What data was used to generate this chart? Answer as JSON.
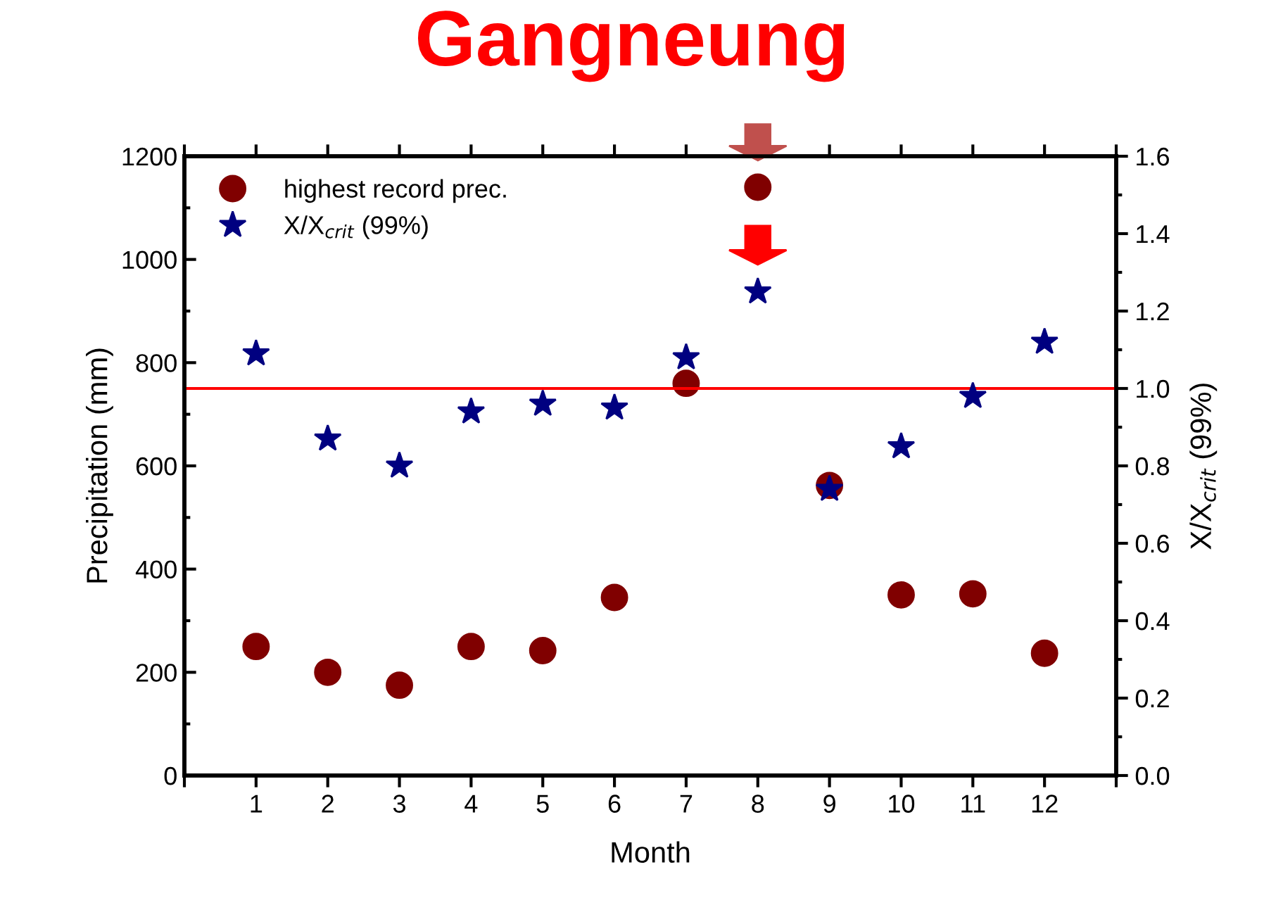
{
  "chart_data": {
    "type": "scatter",
    "title": "Gangneung",
    "xlabel": "Month",
    "ylabel": "Precipitation (mm)",
    "y2label": "X/X$_{crit}$ (99%)",
    "x": [
      1,
      2,
      3,
      4,
      5,
      6,
      7,
      8,
      9,
      10,
      11,
      12
    ],
    "series": [
      {
        "name": "highest record prec.",
        "color": "#800000",
        "marker": "circle",
        "values": [
          250,
          200,
          175,
          250,
          242,
          345,
          760,
          1140,
          562,
          350,
          352,
          237
        ]
      },
      {
        "name": "X/X$_{crit}$ (99%)",
        "color": "#000080",
        "marker": "star",
        "axis": "y2",
        "values": [
          1.09,
          0.87,
          0.8,
          0.94,
          0.96,
          0.95,
          1.08,
          1.25,
          0.74,
          0.85,
          0.98,
          1.12
        ]
      }
    ],
    "xlim": [
      0,
      13
    ],
    "xticks": [
      {
        "value": 0,
        "label": null
      },
      1,
      2,
      3,
      4,
      5,
      6,
      7,
      8,
      9,
      10,
      11,
      12,
      {
        "value": 13,
        "label": null
      }
    ],
    "ylim": [
      0,
      1200
    ],
    "yticks": [
      0,
      200,
      400,
      600,
      800,
      1000,
      1200
    ],
    "y2lim": [
      0.0,
      1.6
    ],
    "y2ticks": [
      {
        "value": 0.0,
        "label": "0.0"
      },
      0.2,
      0.4,
      0.6,
      0.8,
      {
        "value": 1.0,
        "label": "1.0"
      },
      1.2,
      1.4,
      1.6
    ],
    "ref_lines": [
      {
        "axis": "y2",
        "value": 1.0,
        "label": null,
        "color": "#ff0000"
      }
    ],
    "legend": "top left",
    "grid": false
  }
}
